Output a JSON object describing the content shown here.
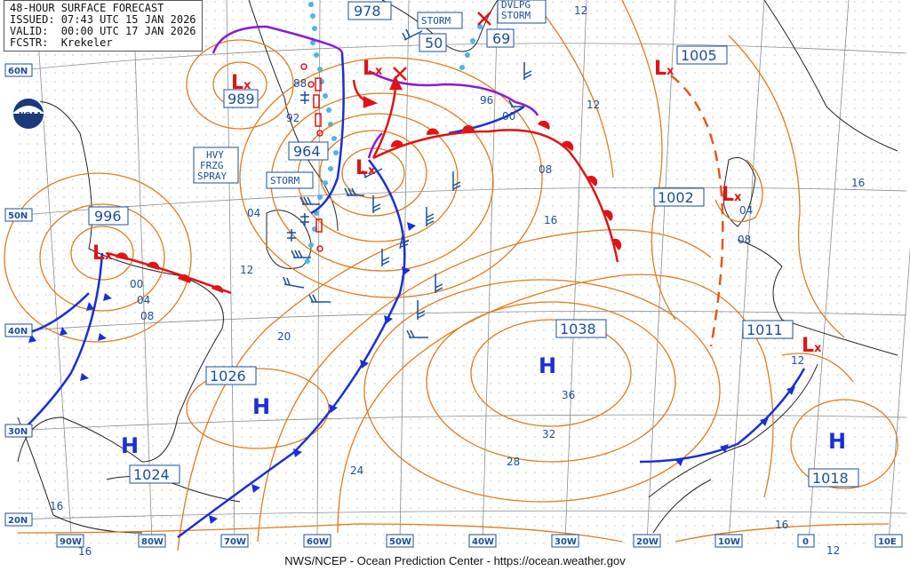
{
  "header": {
    "title": "48-HOUR SURFACE FORECAST",
    "issued": "ISSUED: 07:43 UTC 15 JAN 2026",
    "valid": "VALID:  00:00 UTC 17 JAN 2026",
    "forecaster": "FCSTR:  Krekeler"
  },
  "credit": "NWS/NCEP - Ocean Prediction Center - https://ocean.weather.gov",
  "logo_text": "NOAA",
  "lat_labels": [
    "60N",
    "50N",
    "40N",
    "30N",
    "20N"
  ],
  "lon_labels": [
    "90W",
    "80W",
    "70W",
    "60W",
    "50W",
    "40W",
    "30W",
    "20W",
    "10W",
    "0",
    "10E"
  ],
  "pressure_centers": [
    {
      "type": "L",
      "value": "989"
    },
    {
      "type": "L",
      "value": "978"
    },
    {
      "type": "L",
      "value": "964"
    },
    {
      "type": "L",
      "value": "996"
    },
    {
      "type": "L",
      "value": "1005"
    },
    {
      "type": "L",
      "value": "1002"
    },
    {
      "type": "L",
      "value": "1011"
    },
    {
      "type": "H",
      "value": "1038"
    },
    {
      "type": "H",
      "value": "1026"
    },
    {
      "type": "H",
      "value": "1024"
    },
    {
      "type": "H",
      "value": "1018"
    }
  ],
  "warning_boxes": [
    "STORM",
    "STORM",
    "DVLPG\nSTORM",
    "HVY\nFRZG\nSPRAY"
  ],
  "small_values": [
    "50",
    "69"
  ],
  "isobar_labels": [
    "12",
    "96",
    "00",
    "12",
    "08",
    "16",
    "16",
    "04",
    "08",
    "04",
    "12",
    "00",
    "04",
    "08",
    "20",
    "36",
    "32",
    "28",
    "24",
    "16",
    "16",
    "16",
    "12",
    "12",
    "88",
    "92"
  ],
  "colors": {
    "isobar": "#e07b1a",
    "cold_front": "#1a2fd6",
    "warm_front": "#e01414",
    "occluded": "#8a1ad6",
    "text": "#1a4f9c",
    "ice_edge": "#4fb4e8"
  }
}
